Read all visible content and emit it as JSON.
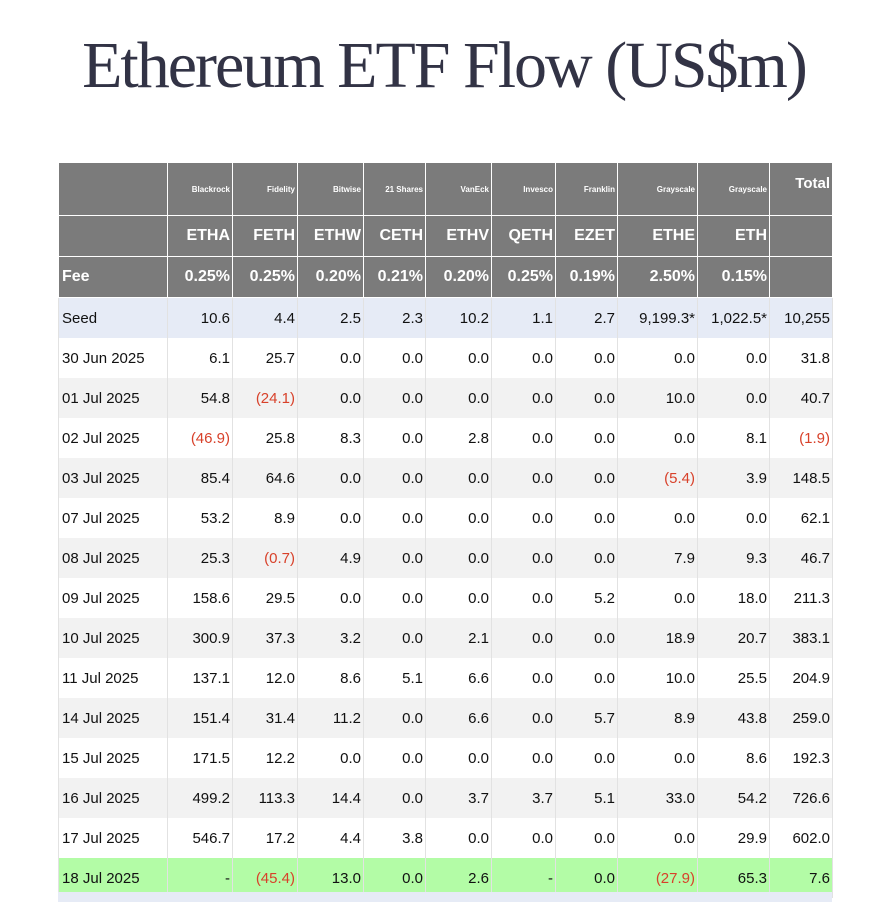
{
  "title": "Ethereum ETF Flow (US$m)",
  "header": {
    "issuers": [
      "",
      "Blackrock",
      "Fidelity",
      "Bitwise",
      "21 Shares",
      "VanEck",
      "Invesco",
      "Franklin",
      "Grayscale",
      "Grayscale",
      "Total"
    ],
    "tickers": [
      "",
      "ETHA",
      "FETH",
      "ETHW",
      "CETH",
      "ETHV",
      "QETH",
      "EZET",
      "ETHE",
      "ETH",
      ""
    ],
    "fee_label": "Fee",
    "fees": [
      "0.25%",
      "0.25%",
      "0.20%",
      "0.21%",
      "0.20%",
      "0.25%",
      "0.19%",
      "2.50%",
      "0.15%",
      ""
    ]
  },
  "rows": [
    {
      "label": "Seed",
      "values": [
        "10.6",
        "4.4",
        "2.5",
        "2.3",
        "10.2",
        "1.1",
        "2.7",
        "9,199.3*",
        "1,022.5*",
        "10,255"
      ]
    },
    {
      "label": "30 Jun 2025",
      "values": [
        "6.1",
        "25.7",
        "0.0",
        "0.0",
        "0.0",
        "0.0",
        "0.0",
        "0.0",
        "0.0",
        "31.8"
      ]
    },
    {
      "label": "01 Jul 2025",
      "values": [
        "54.8",
        "(24.1)",
        "0.0",
        "0.0",
        "0.0",
        "0.0",
        "0.0",
        "10.0",
        "0.0",
        "40.7"
      ]
    },
    {
      "label": "02 Jul 2025",
      "values": [
        "(46.9)",
        "25.8",
        "8.3",
        "0.0",
        "2.8",
        "0.0",
        "0.0",
        "0.0",
        "8.1",
        "(1.9)"
      ]
    },
    {
      "label": "03 Jul 2025",
      "values": [
        "85.4",
        "64.6",
        "0.0",
        "0.0",
        "0.0",
        "0.0",
        "0.0",
        "(5.4)",
        "3.9",
        "148.5"
      ]
    },
    {
      "label": "07 Jul 2025",
      "values": [
        "53.2",
        "8.9",
        "0.0",
        "0.0",
        "0.0",
        "0.0",
        "0.0",
        "0.0",
        "0.0",
        "62.1"
      ]
    },
    {
      "label": "08 Jul 2025",
      "values": [
        "25.3",
        "(0.7)",
        "4.9",
        "0.0",
        "0.0",
        "0.0",
        "0.0",
        "7.9",
        "9.3",
        "46.7"
      ]
    },
    {
      "label": "09 Jul 2025",
      "values": [
        "158.6",
        "29.5",
        "0.0",
        "0.0",
        "0.0",
        "0.0",
        "5.2",
        "0.0",
        "18.0",
        "211.3"
      ]
    },
    {
      "label": "10 Jul 2025",
      "values": [
        "300.9",
        "37.3",
        "3.2",
        "0.0",
        "2.1",
        "0.0",
        "0.0",
        "18.9",
        "20.7",
        "383.1"
      ]
    },
    {
      "label": "11 Jul 2025",
      "values": [
        "137.1",
        "12.0",
        "8.6",
        "5.1",
        "6.6",
        "0.0",
        "0.0",
        "10.0",
        "25.5",
        "204.9"
      ]
    },
    {
      "label": "14 Jul 2025",
      "values": [
        "151.4",
        "31.4",
        "11.2",
        "0.0",
        "6.6",
        "0.0",
        "5.7",
        "8.9",
        "43.8",
        "259.0"
      ]
    },
    {
      "label": "15 Jul 2025",
      "values": [
        "171.5",
        "12.2",
        "0.0",
        "0.0",
        "0.0",
        "0.0",
        "0.0",
        "0.0",
        "8.6",
        "192.3"
      ]
    },
    {
      "label": "16 Jul 2025",
      "values": [
        "499.2",
        "113.3",
        "14.4",
        "0.0",
        "3.7",
        "3.7",
        "5.1",
        "33.0",
        "54.2",
        "726.6"
      ]
    },
    {
      "label": "17 Jul 2025",
      "values": [
        "546.7",
        "17.2",
        "4.4",
        "3.8",
        "0.0",
        "0.0",
        "0.0",
        "0.0",
        "29.9",
        "602.0"
      ]
    },
    {
      "label": "18 Jul 2025",
      "values": [
        "-",
        "(45.4)",
        "13.0",
        "0.0",
        "2.6",
        "-",
        "0.0",
        "(27.9)",
        "65.3",
        "7.6"
      ]
    }
  ],
  "colors": {
    "header_bg": "#7b7b7b",
    "negative": "#d8412a",
    "seed_row": "#e6ebf6",
    "latest_row": "#b3fca6",
    "title": "#323345"
  }
}
